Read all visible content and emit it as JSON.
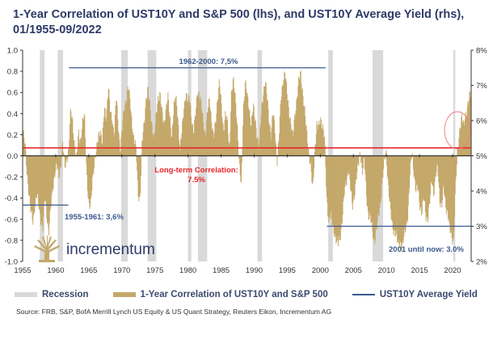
{
  "title": "1-Year Correlation of UST10Y and S&P 500 (lhs), and UST10Y Average Yield (rhs), 01/1955-09/2022",
  "source": "Source: FRB, S&P, BofA Merrill Lynch US Equity & US Quant Strategy, Reuters Eikon, Incrementum AG",
  "logo_text": "incrementum",
  "legend": [
    {
      "label": "Recession",
      "kind": "recession"
    },
    {
      "label": "1-Year Correlation of UST10Y and S&P 500",
      "kind": "bar"
    },
    {
      "label": "UST10Y Average Yield",
      "kind": "line"
    }
  ],
  "colors": {
    "bar": "#c4a86a",
    "recession": "#d9d9d9",
    "avg_line": "#3c5a8e",
    "longterm_line": "#e8242a",
    "title": "#2e3a67",
    "annotation_red": "#e8242a",
    "annotation_blue": "#3c5a8e"
  },
  "chart_data": {
    "type": "bar",
    "title": "1-Year Correlation of UST10Y and S&P 500 (lhs), and UST10Y Average Yield (rhs), 01/1955-09/2022",
    "xlabel": "",
    "ylabel": "",
    "x_range": [
      1955,
      2022.75
    ],
    "x_ticks": [
      1955,
      1960,
      1965,
      1970,
      1975,
      1980,
      1985,
      1990,
      1995,
      2000,
      2005,
      2010,
      2015,
      2020
    ],
    "y_left": {
      "range": [
        -1.0,
        1.0
      ],
      "ticks": [
        "1.0",
        "0.8",
        "0.6",
        "0.4",
        "0.2",
        "0.0",
        "-0.2",
        "-0.4",
        "-0.6",
        "-0.8",
        "-1.0"
      ],
      "tick_values": [
        1.0,
        0.8,
        0.6,
        0.4,
        0.2,
        0.0,
        -0.2,
        -0.4,
        -0.6,
        -0.8,
        -1.0
      ]
    },
    "y_right": {
      "range": [
        2,
        8
      ],
      "ticks": [
        "8%",
        "7%",
        "6%",
        "5%",
        "4%",
        "3%",
        "2%"
      ],
      "tick_values": [
        8,
        7,
        6,
        5,
        4,
        3,
        2
      ]
    },
    "grid": false,
    "legend_position": "bottom",
    "recessions": [
      [
        1957.6,
        1958.3
      ],
      [
        1960.3,
        1961.1
      ],
      [
        1969.9,
        1970.9
      ],
      [
        1973.9,
        1975.2
      ],
      [
        1980.0,
        1980.5
      ],
      [
        1981.5,
        1982.9
      ],
      [
        1990.5,
        1991.2
      ],
      [
        2001.2,
        2001.9
      ],
      [
        2007.9,
        2009.5
      ],
      [
        2020.1,
        2020.4
      ]
    ],
    "series": [
      {
        "name": "1-Year Correlation of UST10Y and S&P 500",
        "axis": "left",
        "points": [
          [
            1955.0,
            0.22
          ],
          [
            1955.3,
            0.1
          ],
          [
            1955.6,
            -0.15
          ],
          [
            1955.9,
            -0.35
          ],
          [
            1956.2,
            -0.55
          ],
          [
            1956.5,
            -0.62
          ],
          [
            1956.8,
            -0.45
          ],
          [
            1957.1,
            -0.38
          ],
          [
            1957.4,
            -0.48
          ],
          [
            1957.7,
            -0.6
          ],
          [
            1958.0,
            -0.68
          ],
          [
            1958.3,
            -0.4
          ],
          [
            1958.6,
            -0.55
          ],
          [
            1958.9,
            -0.72
          ],
          [
            1959.2,
            -0.5
          ],
          [
            1959.5,
            -0.3
          ],
          [
            1959.8,
            -0.15
          ],
          [
            1960.1,
            -0.1
          ],
          [
            1960.4,
            -0.2
          ],
          [
            1960.7,
            -0.08
          ],
          [
            1961.0,
            0.12
          ],
          [
            1961.3,
            -0.12
          ],
          [
            1961.6,
            -0.02
          ],
          [
            1961.9,
            0.05
          ],
          [
            1962.2,
            0.42
          ],
          [
            1962.5,
            0.33
          ],
          [
            1962.8,
            0.1
          ],
          [
            1963.1,
            -0.05
          ],
          [
            1963.4,
            0.22
          ],
          [
            1963.7,
            0.15
          ],
          [
            1964.0,
            0.3
          ],
          [
            1964.3,
            0.38
          ],
          [
            1964.6,
            -0.1
          ],
          [
            1964.9,
            -0.45
          ],
          [
            1965.2,
            -0.52
          ],
          [
            1965.5,
            -0.2
          ],
          [
            1965.8,
            -0.05
          ],
          [
            1966.1,
            0.02
          ],
          [
            1966.4,
            0.2
          ],
          [
            1966.7,
            0.25
          ],
          [
            1967.0,
            0.1
          ],
          [
            1967.3,
            0.45
          ],
          [
            1967.6,
            0.38
          ],
          [
            1967.9,
            0.65
          ],
          [
            1968.2,
            0.4
          ],
          [
            1968.5,
            0.35
          ],
          [
            1968.8,
            0.2
          ],
          [
            1969.1,
            0.55
          ],
          [
            1969.4,
            0.3
          ],
          [
            1969.7,
            0.05
          ],
          [
            1970.0,
            0.25
          ],
          [
            1970.3,
            0.45
          ],
          [
            1970.6,
            0.55
          ],
          [
            1970.9,
            0.65
          ],
          [
            1971.2,
            0.5
          ],
          [
            1971.5,
            0.3
          ],
          [
            1971.8,
            0.15
          ],
          [
            1972.1,
            0.05
          ],
          [
            1972.4,
            -0.35
          ],
          [
            1972.7,
            -0.4
          ],
          [
            1973.0,
            0.1
          ],
          [
            1973.3,
            0.3
          ],
          [
            1973.6,
            0.55
          ],
          [
            1973.9,
            0.62
          ],
          [
            1974.2,
            0.45
          ],
          [
            1974.5,
            0.3
          ],
          [
            1974.8,
            0.15
          ],
          [
            1975.1,
            0.35
          ],
          [
            1975.4,
            0.55
          ],
          [
            1975.7,
            0.6
          ],
          [
            1976.0,
            0.4
          ],
          [
            1976.3,
            0.3
          ],
          [
            1976.6,
            0.45
          ],
          [
            1976.9,
            0.55
          ],
          [
            1977.2,
            0.35
          ],
          [
            1977.5,
            0.2
          ],
          [
            1977.8,
            0.45
          ],
          [
            1978.1,
            0.55
          ],
          [
            1978.4,
            0.4
          ],
          [
            1978.7,
            0.05
          ],
          [
            1979.0,
            0.2
          ],
          [
            1979.3,
            0.45
          ],
          [
            1979.6,
            0.6
          ],
          [
            1979.9,
            0.5
          ],
          [
            1980.2,
            0.55
          ],
          [
            1980.5,
            0.35
          ],
          [
            1980.8,
            0.2
          ],
          [
            1981.1,
            0.4
          ],
          [
            1981.4,
            0.65
          ],
          [
            1981.7,
            0.55
          ],
          [
            1982.0,
            0.45
          ],
          [
            1982.3,
            0.3
          ],
          [
            1982.6,
            0.2
          ],
          [
            1982.9,
            0.4
          ],
          [
            1983.2,
            0.55
          ],
          [
            1983.5,
            0.35
          ],
          [
            1983.8,
            0.15
          ],
          [
            1984.1,
            0.3
          ],
          [
            1984.4,
            0.55
          ],
          [
            1984.7,
            0.7
          ],
          [
            1985.0,
            0.45
          ],
          [
            1985.3,
            0.25
          ],
          [
            1985.6,
            0.4
          ],
          [
            1985.9,
            0.3
          ],
          [
            1986.2,
            0.05
          ],
          [
            1986.5,
            0.6
          ],
          [
            1986.8,
            0.7
          ],
          [
            1987.1,
            0.55
          ],
          [
            1987.4,
            0.3
          ],
          [
            1987.7,
            -0.1
          ],
          [
            1988.0,
            -0.3
          ],
          [
            1988.3,
            0.45
          ],
          [
            1988.6,
            0.7
          ],
          [
            1988.9,
            0.55
          ],
          [
            1989.2,
            0.45
          ],
          [
            1989.5,
            0.3
          ],
          [
            1989.8,
            0.45
          ],
          [
            1990.1,
            0.35
          ],
          [
            1990.4,
            0.2
          ],
          [
            1990.7,
            0.05
          ],
          [
            1991.0,
            0.4
          ],
          [
            1991.3,
            0.6
          ],
          [
            1991.6,
            0.7
          ],
          [
            1991.9,
            0.55
          ],
          [
            1992.2,
            0.35
          ],
          [
            1992.5,
            0.2
          ],
          [
            1992.8,
            0.4
          ],
          [
            1993.1,
            0.25
          ],
          [
            1993.4,
            -0.05
          ],
          [
            1993.7,
            0.15
          ],
          [
            1994.0,
            0.55
          ],
          [
            1994.3,
            0.72
          ],
          [
            1994.6,
            0.78
          ],
          [
            1994.9,
            0.6
          ],
          [
            1995.2,
            0.45
          ],
          [
            1995.5,
            0.3
          ],
          [
            1995.8,
            0.15
          ],
          [
            1996.1,
            0.4
          ],
          [
            1996.4,
            0.55
          ],
          [
            1996.7,
            0.7
          ],
          [
            1997.0,
            0.78
          ],
          [
            1997.3,
            0.6
          ],
          [
            1997.6,
            0.4
          ],
          [
            1997.9,
            0.2
          ],
          [
            1998.2,
            0.05
          ],
          [
            1998.5,
            -0.1
          ],
          [
            1998.8,
            -0.35
          ],
          [
            1999.1,
            0.05
          ],
          [
            1999.4,
            0.3
          ],
          [
            1999.7,
            0.25
          ],
          [
            2000.0,
            0.35
          ],
          [
            2000.3,
            0.3
          ],
          [
            2000.6,
            0.15
          ],
          [
            2000.9,
            -0.4
          ],
          [
            2001.2,
            -0.6
          ],
          [
            2001.5,
            -0.55
          ],
          [
            2001.8,
            -0.68
          ],
          [
            2002.1,
            -0.72
          ],
          [
            2002.4,
            -0.8
          ],
          [
            2002.7,
            -0.85
          ],
          [
            2003.0,
            -0.75
          ],
          [
            2003.3,
            -0.55
          ],
          [
            2003.6,
            -0.35
          ],
          [
            2003.9,
            -0.25
          ],
          [
            2004.2,
            -0.1
          ],
          [
            2004.5,
            -0.3
          ],
          [
            2004.8,
            -0.5
          ],
          [
            2005.1,
            -0.35
          ],
          [
            2005.4,
            -0.2
          ],
          [
            2005.7,
            -0.1
          ],
          [
            2006.0,
            0.05
          ],
          [
            2006.3,
            -0.15
          ],
          [
            2006.6,
            -0.05
          ],
          [
            2006.9,
            -0.35
          ],
          [
            2007.2,
            -0.55
          ],
          [
            2007.5,
            -0.6
          ],
          [
            2007.8,
            -0.7
          ],
          [
            2008.1,
            -0.8
          ],
          [
            2008.4,
            -0.72
          ],
          [
            2008.7,
            -0.6
          ],
          [
            2009.0,
            -0.45
          ],
          [
            2009.3,
            -0.25
          ],
          [
            2009.6,
            -0.08
          ],
          [
            2009.9,
            0.05
          ],
          [
            2010.2,
            -0.25
          ],
          [
            2010.5,
            -0.5
          ],
          [
            2010.8,
            -0.65
          ],
          [
            2011.1,
            -0.7
          ],
          [
            2011.4,
            -0.75
          ],
          [
            2011.7,
            -0.85
          ],
          [
            2012.0,
            -0.8
          ],
          [
            2012.3,
            -0.88
          ],
          [
            2012.6,
            -0.78
          ],
          [
            2012.9,
            -0.65
          ],
          [
            2013.2,
            -0.55
          ],
          [
            2013.5,
            -0.2
          ],
          [
            2013.8,
            0.05
          ],
          [
            2014.1,
            -0.15
          ],
          [
            2014.4,
            -0.35
          ],
          [
            2014.7,
            -0.3
          ],
          [
            2015.0,
            -0.45
          ],
          [
            2015.3,
            -0.55
          ],
          [
            2015.6,
            -0.4
          ],
          [
            2015.9,
            -0.55
          ],
          [
            2016.2,
            -0.6
          ],
          [
            2016.5,
            -0.45
          ],
          [
            2016.8,
            -0.2
          ],
          [
            2017.1,
            -0.35
          ],
          [
            2017.4,
            -0.2
          ],
          [
            2017.7,
            -0.1
          ],
          [
            2018.0,
            -0.4
          ],
          [
            2018.3,
            -0.5
          ],
          [
            2018.6,
            -0.3
          ],
          [
            2018.9,
            -0.45
          ],
          [
            2019.2,
            -0.55
          ],
          [
            2019.5,
            -0.7
          ],
          [
            2019.8,
            -0.75
          ],
          [
            2020.1,
            -0.8
          ],
          [
            2020.4,
            -0.3
          ],
          [
            2020.7,
            0.05
          ],
          [
            2021.0,
            0.25
          ],
          [
            2021.3,
            0.35
          ],
          [
            2021.6,
            0.28
          ],
          [
            2021.9,
            0.4
          ],
          [
            2022.2,
            0.45
          ],
          [
            2022.5,
            0.55
          ],
          [
            2022.7,
            0.6
          ]
        ]
      },
      {
        "name": "UST10Y Average Yield",
        "axis": "right",
        "segments": [
          {
            "label": "1955-1961: 3,6%",
            "from": 1955,
            "to": 1961.9,
            "value": 3.6
          },
          {
            "label": "1962-2000: 7,5%",
            "from": 1962,
            "to": 2000.8,
            "value": 7.5
          },
          {
            "label": "2001 until now: 3.0%",
            "from": 2001,
            "to": 2022.75,
            "value": 3.0
          }
        ]
      },
      {
        "name": "Long-term Correlation",
        "axis": "left",
        "value": 0.075,
        "label_line1": "Long-term Correlation:",
        "label_line2": "7.5%"
      }
    ],
    "annotations": [
      {
        "text": "1962-2000: 7,5%",
        "color": "blue"
      },
      {
        "text": "1955-1961: 3,6%",
        "color": "blue"
      },
      {
        "text": "2001 until now: 3.0%",
        "color": "blue"
      },
      {
        "text": "Long-term Correlation: 7.5%",
        "color": "red"
      },
      {
        "text": "highlight circle around 2021-2022 positive correlation",
        "color": "red"
      }
    ]
  }
}
